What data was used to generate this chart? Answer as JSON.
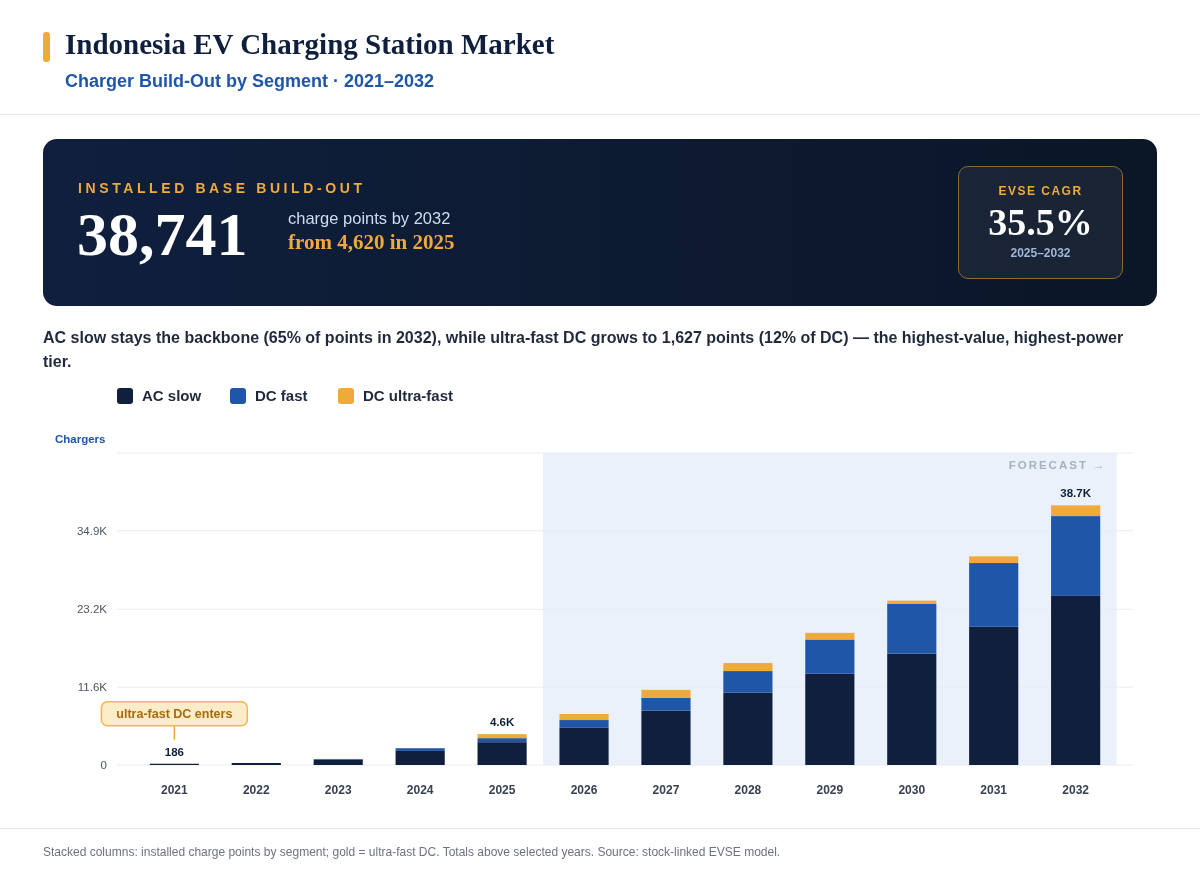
{
  "chart_data": {
    "type": "bar",
    "title": "Indonesia EV Charging Station Market",
    "subtitle": "Charger Build-Out by Segment · 2021–2032",
    "ylabel": "Chargers",
    "categories": [
      "2021",
      "2022",
      "2023",
      "2024",
      "2025",
      "2026",
      "2027",
      "2028",
      "2029",
      "2030",
      "2031",
      "2032"
    ],
    "stacked": true,
    "series": [
      {
        "name": "AC slow",
        "color": "#0f1f3d",
        "values": [
          186,
          300,
          800,
          2100,
          3400,
          5600,
          8100,
          10800,
          13600,
          16600,
          20600,
          25200
        ]
      },
      {
        "name": "DC fast",
        "color": "#1f56a8",
        "values": [
          null,
          null,
          100,
          400,
          600,
          1100,
          1900,
          3200,
          5100,
          7400,
          9500,
          11900
        ]
      },
      {
        "name": "DC ultra-fast",
        "color": "#f0a93b",
        "values": [
          0,
          0,
          0,
          0,
          600,
          900,
          1200,
          1200,
          1000,
          500,
          1000,
          1600
        ]
      }
    ],
    "totals": [
      "186",
      null,
      null,
      null,
      "4.6K",
      null,
      null,
      null,
      null,
      null,
      null,
      "38.7K"
    ],
    "ylim": [
      0,
      46500
    ],
    "yticks": [
      0,
      {
        "value": 11600,
        "label": "11.6K"
      },
      {
        "value": 23200,
        "label": "23.2K"
      },
      {
        "value": 34900,
        "label": "34.9K"
      },
      {
        "value": 46500,
        "label": null
      }
    ],
    "grid": "y",
    "legend": "top left",
    "bands": [
      {
        "axis": "x",
        "from": "2026",
        "to": "2032",
        "label": "FORECAST →",
        "color": "#eaf1fa"
      }
    ],
    "annotations": [
      "INSTALLED BASE BUILD-OUT",
      "38,741",
      "charge points by 2032",
      "from 4,620 in 2025",
      "EVSE CAGR",
      "35.5%",
      "2025–2032",
      "AC slow stays the backbone (65% of points in 2032), while ultra-fast DC grows to 1,627 points (12% of DC) — the highest-value, highest-power tier.",
      "Stacked columns: installed charge points by segment; gold = ultra-fast DC. Totals above selected years. Source: stock-linked EVSE model.",
      "ultra-fast DC enters"
    ]
  }
}
